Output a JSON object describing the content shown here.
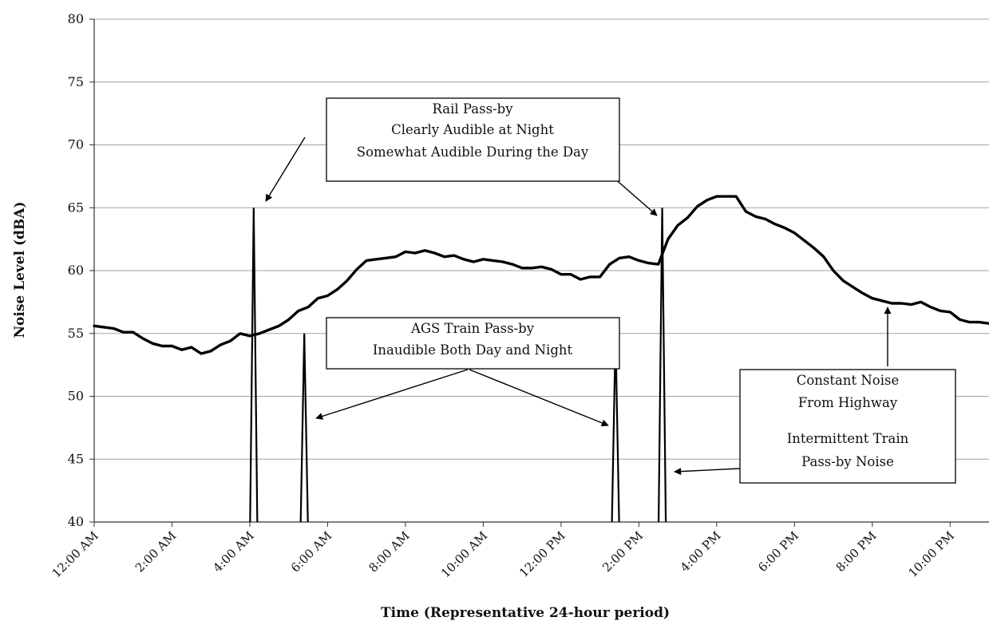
{
  "chart_data": {
    "type": "line",
    "xlabel": "Time (Representative 24-hour period)",
    "ylabel": "Noise Level (dBA)",
    "xlim": [
      0,
      23
    ],
    "ylim": [
      40,
      80
    ],
    "y_ticks": [
      40,
      45,
      50,
      55,
      60,
      65,
      70,
      75,
      80
    ],
    "x_ticks": [
      {
        "label": "12:00 AM",
        "hour": 0
      },
      {
        "label": "2:00 AM",
        "hour": 2
      },
      {
        "label": "4:00 AM",
        "hour": 4
      },
      {
        "label": "6:00 AM",
        "hour": 6
      },
      {
        "label": "8:00 AM",
        "hour": 8
      },
      {
        "label": "10:00 AM",
        "hour": 10
      },
      {
        "label": "12:00 PM",
        "hour": 12
      },
      {
        "label": "2:00 PM",
        "hour": 14
      },
      {
        "label": "4:00 PM",
        "hour": 16
      },
      {
        "label": "6:00 PM",
        "hour": 18
      },
      {
        "label": "8:00 PM",
        "hour": 20
      },
      {
        "label": "10:00 PM",
        "hour": 22
      }
    ],
    "grid": true,
    "series": [
      {
        "description": "highway",
        "x": [
          0,
          0.25,
          0.5,
          0.75,
          1.0,
          1.25,
          1.5,
          1.75,
          2.0,
          2.25,
          2.5,
          2.75,
          3.0,
          3.25,
          3.5,
          3.75,
          4.0,
          4.25,
          4.5,
          4.75,
          5.0,
          5.25,
          5.5,
          5.75,
          6.0,
          6.25,
          6.5,
          6.75,
          7.0,
          7.25,
          7.5,
          7.75,
          8.0,
          8.25,
          8.5,
          8.75,
          9.0,
          9.25,
          9.5,
          9.75,
          10.0,
          10.25,
          10.5,
          10.75,
          11.0,
          11.25,
          11.5,
          11.75,
          12.0,
          12.25,
          12.5,
          12.75,
          13.0,
          13.25,
          13.5,
          13.75,
          14.0,
          14.25,
          14.5,
          14.75,
          15.0,
          15.25,
          15.5,
          15.75,
          16.0,
          16.25,
          16.5,
          16.75,
          17.0,
          17.25,
          17.5,
          17.75,
          18.0,
          18.25,
          18.5,
          18.75,
          19.0,
          19.25,
          19.5,
          19.75,
          20.0,
          20.25,
          20.5,
          20.75,
          21.0,
          21.25,
          21.5,
          21.75,
          22.0,
          22.25,
          22.5,
          22.75,
          23.0
        ],
        "y": [
          55.6,
          55.5,
          55.4,
          55.1,
          55.1,
          54.6,
          54.2,
          54.0,
          54.0,
          53.7,
          53.9,
          53.4,
          53.6,
          54.1,
          54.4,
          55.0,
          54.8,
          55.0,
          55.3,
          55.6,
          56.1,
          56.8,
          57.1,
          57.8,
          58.0,
          58.5,
          59.2,
          60.1,
          60.8,
          60.9,
          61.0,
          61.1,
          61.5,
          61.4,
          61.6,
          61.4,
          61.1,
          61.2,
          60.9,
          60.7,
          60.9,
          60.8,
          60.7,
          60.5,
          60.2,
          60.2,
          60.3,
          60.1,
          59.7,
          59.7,
          59.3,
          59.5,
          59.5,
          60.5,
          61.0,
          61.1,
          60.8,
          60.6,
          60.5,
          62.5,
          63.6,
          64.2,
          65.1,
          65.6,
          65.9,
          65.9,
          65.9,
          64.7,
          64.3,
          64.1,
          63.7,
          63.4,
          63.0,
          62.4,
          61.8,
          61.1,
          60.0,
          59.2,
          58.7,
          58.2,
          57.8,
          57.6,
          57.4,
          57.4,
          57.3,
          57.5,
          57.1,
          56.8,
          56.7,
          56.1,
          55.9,
          55.9,
          55.8
        ]
      },
      {
        "description": "rail-pass-by",
        "spikes": [
          {
            "x": 4.1,
            "peak": 65.0
          },
          {
            "x": 14.6,
            "peak": 65.0
          }
        ]
      },
      {
        "description": "ags-train-pass-by",
        "spikes": [
          {
            "x": 5.4,
            "peak": 55.0
          },
          {
            "x": 13.4,
            "peak": 55.0
          }
        ]
      }
    ],
    "annotations": [
      {
        "id": "rail",
        "lines": [
          "Rail Pass-by",
          "Clearly Audible at Night",
          "Somewhat Audible During the Day"
        ]
      },
      {
        "id": "ags",
        "lines": [
          "AGS Train Pass-by",
          "Inaudible Both Day and Night"
        ]
      },
      {
        "id": "highway",
        "lines": [
          "Constant Noise",
          "From Highway",
          "Intermittent Train",
          "Pass-by Noise"
        ]
      }
    ]
  }
}
